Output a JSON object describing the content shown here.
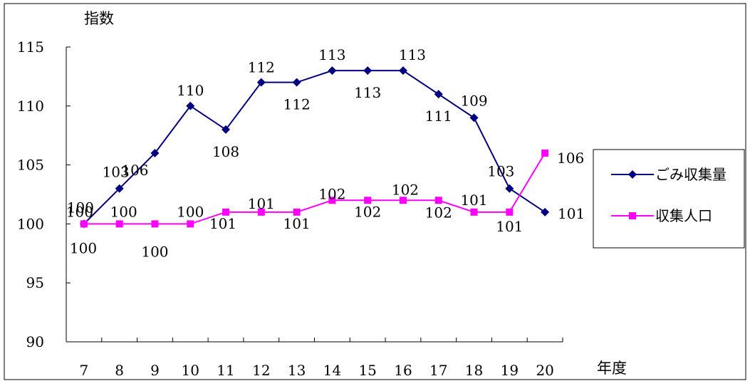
{
  "chart_data": {
    "type": "line",
    "title": "",
    "ylabel": "指数",
    "xlabel": "年度",
    "x": [
      "7",
      "8",
      "9",
      "10",
      "11",
      "12",
      "13",
      "14",
      "15",
      "16",
      "17",
      "18",
      "19",
      "20"
    ],
    "yticks": [
      "115",
      "110",
      "105",
      "100",
      "95",
      "90"
    ],
    "ylim": [
      90,
      115
    ],
    "grid": false,
    "legend_position": "right",
    "series": [
      {
        "name": "ごみ収集量",
        "color": "#000080",
        "marker": "diamond",
        "values": [
          100,
          103,
          106,
          110,
          108,
          112,
          112,
          113,
          113,
          113,
          111,
          109,
          103,
          101
        ],
        "labels": [
          "100",
          "103",
          "106",
          "110",
          "108",
          "112",
          "112",
          "113",
          "113",
          "113",
          "111",
          "109",
          "103",
          "101"
        ]
      },
      {
        "name": "収集人口",
        "color": "#ff00ff",
        "marker": "square",
        "values": [
          100,
          100,
          100,
          100,
          101,
          101,
          101,
          102,
          102,
          102,
          102,
          101,
          101,
          106
        ],
        "labels": [
          "100",
          "100",
          "100",
          "100",
          "101",
          "101",
          "101",
          "102",
          "102",
          "102",
          "102",
          "101",
          "101",
          "106"
        ]
      }
    ]
  }
}
